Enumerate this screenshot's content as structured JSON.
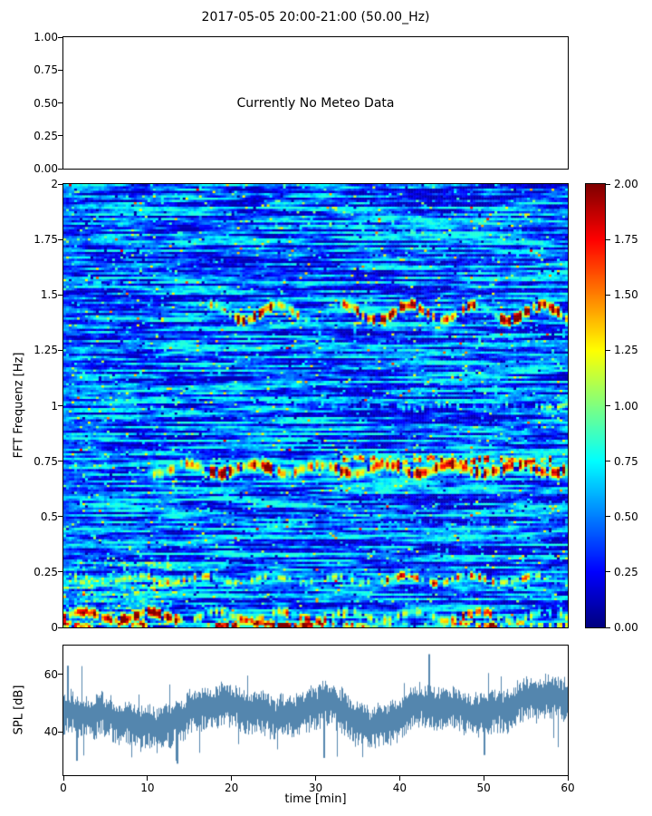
{
  "figure": {
    "title": "2017-05-05 20:00-21:00 (50.00_Hz)",
    "background": "#ffffff"
  },
  "meteo_panel": {
    "message": "Currently No Meteo Data",
    "yticks": [
      "1.00",
      "0.75",
      "0.50",
      "0.25",
      "0.00"
    ]
  },
  "spectrogram_panel": {
    "ylabel": "FFT Frequenz [Hz]",
    "yticks": [
      "2",
      "1.75",
      "1.5",
      "1.25",
      "1",
      "0.75",
      "0.5",
      "0.25",
      "0"
    ]
  },
  "colorbar": {
    "ticks": [
      "2.00",
      "1.75",
      "1.50",
      "1.25",
      "1.00",
      "0.75",
      "0.50",
      "0.25",
      "0.00"
    ],
    "colormap": "jet",
    "vmin": 0,
    "vmax": 2
  },
  "spl_panel": {
    "ylabel": "SPL [dB]",
    "yticks": [
      "60",
      "40"
    ],
    "xticks": [
      "0",
      "10",
      "20",
      "30",
      "40",
      "50",
      "60"
    ],
    "xlabel": "time [min]",
    "line_color": "#5486ae"
  },
  "chart_data": [
    {
      "type": "line",
      "panel": "meteo",
      "title": "2017-05-05 20:00-21:00 (50.00_Hz)",
      "annotation": "Currently No Meteo Data",
      "ylim": [
        0,
        1
      ],
      "yticks": [
        1.0,
        0.75,
        0.5,
        0.25,
        0.0
      ],
      "series": []
    },
    {
      "type": "heatmap",
      "panel": "spectrogram",
      "ylabel": "FFT Frequenz [Hz]",
      "xlim": [
        0,
        60
      ],
      "ylim": [
        0,
        2
      ],
      "value_range": [
        0,
        2
      ],
      "colormap": "jet",
      "legend_position": "right-colorbar",
      "colorbar_ticks": [
        0,
        0.25,
        0.5,
        0.75,
        1.0,
        1.25,
        1.5,
        1.75,
        2.0
      ],
      "grid": {
        "nt": 186,
        "nf": 196
      },
      "seed": 20170505,
      "background": {
        "base_min": 0.3,
        "base_max": 0.62,
        "walk_step": 0.3,
        "min": 0.1,
        "max": 0.82,
        "dark_prob": 0.02,
        "cyan_speckle_prob": 0.035,
        "bright_speckle_prob": 0.009
      },
      "patches": [
        {
          "t0": 0,
          "t1": 13,
          "f0": 0.0,
          "f1": 0.32,
          "boost": 0.45,
          "prob": 0.4
        }
      ],
      "bands": [
        {
          "name": "band-1.42Hz",
          "freq": 1.42,
          "wobble": 0.035,
          "width": 0.03,
          "dropout": 0.18,
          "segments": [
            [
              17,
              20,
              1.1
            ],
            [
              20,
              25,
              2.0
            ],
            [
              25,
              28,
              1.2
            ],
            [
              28,
              33,
              0.7
            ],
            [
              33,
              41,
              1.7
            ],
            [
              41,
              49,
              1.9
            ],
            [
              49,
              52,
              0.9
            ],
            [
              52,
              60,
              2.0
            ]
          ]
        },
        {
          "name": "band-0.72Hz",
          "freq": 0.715,
          "wobble": 0.02,
          "width": 0.035,
          "dropout": 0.12,
          "segments": [
            [
              10,
              17,
              1.2
            ],
            [
              17,
              25,
              1.9
            ],
            [
              25,
              32,
              1.3
            ],
            [
              32,
              38,
              1.7
            ],
            [
              38,
              52,
              2.0
            ],
            [
              52,
              60,
              1.8
            ]
          ]
        },
        {
          "name": "band-0.75Hz",
          "freq": 0.755,
          "wobble": 0.01,
          "width": 0.02,
          "dropout": 0.3,
          "segments": [
            [
              33,
              45,
              1.5
            ],
            [
              45,
              58,
              1.8
            ]
          ]
        },
        {
          "name": "band-0.21Hz",
          "freq": 0.215,
          "wobble": 0.015,
          "width": 0.025,
          "dropout": 0.25,
          "segments": [
            [
              0,
              10,
              0.9
            ],
            [
              10,
              18,
              1.2
            ],
            [
              18,
              38,
              0.9
            ],
            [
              38,
              50,
              1.5
            ],
            [
              50,
              57,
              1.4
            ],
            [
              57,
              60,
              0.8
            ]
          ]
        },
        {
          "name": "band-1.0Hz",
          "freq": 1.0,
          "wobble": 0.01,
          "width": 0.02,
          "dropout": 0.5,
          "segments": [
            [
              25,
              40,
              0.55
            ],
            [
              40,
              55,
              0.7
            ],
            [
              55,
              60,
              0.9
            ]
          ]
        },
        {
          "name": "band-0.47Hz",
          "freq": 0.47,
          "wobble": 0.01,
          "width": 0.02,
          "dropout": 0.6,
          "segments": [
            [
              0,
              60,
              0.55
            ]
          ]
        },
        {
          "name": "band-1.78Hz",
          "freq": 1.78,
          "wobble": 0.01,
          "width": 0.02,
          "dropout": 0.5,
          "segments": [
            [
              36,
              44,
              0.7
            ],
            [
              50,
              56,
              0.6
            ]
          ]
        },
        {
          "name": "band-1.55Hz",
          "freq": 1.55,
          "wobble": 0.01,
          "width": 0.02,
          "dropout": 0.4,
          "segments": [
            [
              0,
              6,
              0.6
            ]
          ]
        },
        {
          "name": "band-0.05Hz",
          "freq": 0.05,
          "wobble": 0.02,
          "width": 0.03,
          "dropout": 0.25,
          "segments": [
            [
              0,
              6,
              1.6
            ],
            [
              6,
              14,
              1.9
            ],
            [
              14,
              20,
              1.0
            ],
            [
              20,
              32,
              1.4
            ],
            [
              32,
              46,
              1.0
            ],
            [
              46,
              53,
              1.6
            ],
            [
              53,
              60,
              0.9
            ]
          ]
        },
        {
          "name": "band-floor",
          "freq": 0.012,
          "wobble": 0.005,
          "width": 0.018,
          "dropout": 0.2,
          "segments": [
            [
              0,
              4,
              1.8
            ],
            [
              6,
              10,
              1.7
            ],
            [
              18,
              31,
              2.0
            ],
            [
              31,
              36,
              1.4
            ],
            [
              36,
              46,
              0.9
            ],
            [
              46,
              52,
              1.9
            ],
            [
              52,
              60,
              1.1
            ]
          ]
        }
      ]
    },
    {
      "type": "line",
      "panel": "spl",
      "ylabel": "SPL [dB]",
      "xlabel": "time [min]",
      "xlim": [
        0,
        60
      ],
      "ylim": [
        25,
        70
      ],
      "yticks": [
        40,
        60
      ],
      "xticks": [
        0,
        10,
        20,
        30,
        40,
        50,
        60
      ],
      "series": [
        {
          "name": "SPL",
          "mean_db": 47,
          "min_db": 28,
          "max_db": 67
        }
      ],
      "spikes": [
        {
          "t": 0.5,
          "hi": 63
        },
        {
          "t": 1.6,
          "lo": 30
        },
        {
          "t": 13.5,
          "lo": 29
        },
        {
          "t": 31,
          "lo": 31
        },
        {
          "t": 43.5,
          "hi": 67
        },
        {
          "t": 50,
          "lo": 32
        }
      ]
    }
  ]
}
